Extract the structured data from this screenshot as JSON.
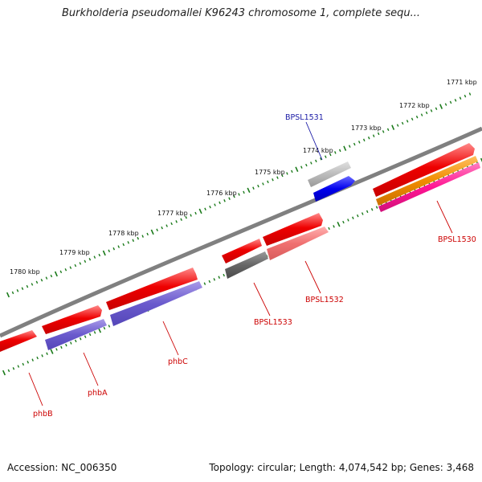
{
  "title": "Burkholderia pseudomallei K96243 chromosome 1, complete sequ...",
  "footer": {
    "accession": "Accession: NC_006350",
    "summary": "Topology: circular; Length: 4,074,542 bp; Genes: 3,468"
  },
  "scale_labels": [
    "1771 kbp",
    "1772 kbp",
    "1773 kbp",
    "1774 kbp",
    "1775 kbp",
    "1776 kbp",
    "1777 kbp",
    "1778 kbp",
    "1779 kbp",
    "1780 kbp"
  ],
  "gene_labels": [
    {
      "text": "BPSL1531",
      "color": "#1a1aa6"
    },
    {
      "text": "BPSL1530",
      "color": "#cc0000"
    },
    {
      "text": "BPSL1532",
      "color": "#cc0000"
    },
    {
      "text": "BPSL1533",
      "color": "#cc0000"
    },
    {
      "text": "phbC",
      "color": "#cc0000"
    },
    {
      "text": "phbA",
      "color": "#cc0000"
    },
    {
      "text": "phbB",
      "color": "#cc0000"
    }
  ],
  "colors": {
    "backbone": "#808080",
    "tick": "#1a7a1a",
    "red": "#ee0000",
    "purple": "#6a5acd",
    "grey": "#666666",
    "lightgrey": "#bbbbbb",
    "blue": "#0000ee",
    "salmon": "#f07070",
    "orange": "#f08c00",
    "pink": "#ff1493"
  }
}
